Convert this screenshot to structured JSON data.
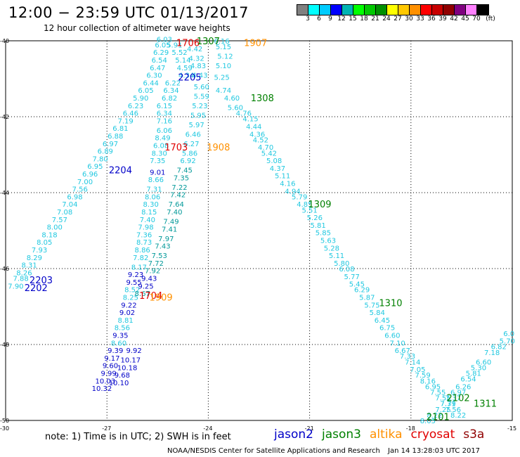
{
  "title": "12:00 − 23:59 UTC 01/13/2017",
  "subtitle": "12 hour collection of altimeter wave heights",
  "colorbar": {
    "unit": "(ft)",
    "ticks": [
      "3",
      "6",
      "9",
      "12",
      "15",
      "18",
      "21",
      "24",
      "27",
      "30",
      "33",
      "36",
      "39",
      "42",
      "45",
      "70"
    ],
    "colors": [
      "#808080",
      "#00ffff",
      "#00ccff",
      "#0000ff",
      "#00b4b4",
      "#00ff00",
      "#00c800",
      "#009000",
      "#ffff00",
      "#ffc800",
      "#ff9000",
      "#ff0000",
      "#c80000",
      "#900000",
      "#800080",
      "#ff80ff",
      "#000000"
    ]
  },
  "map": {
    "lon_range": [
      -30,
      -15
    ],
    "lat_range": [
      -50,
      -40
    ],
    "lon_ticks": [
      "-27",
      "-24",
      "-21",
      "-18",
      "-15"
    ],
    "lat_ticks": [
      "-40",
      "-42",
      "-44",
      "-46",
      "-48",
      "-50"
    ],
    "corner_label": "-30",
    "grid_color": "#000000"
  },
  "tracks": {
    "labels": [
      {
        "text": "1706",
        "lon": -24.6,
        "lat": -40.05,
        "color": "#e00000"
      },
      {
        "text": "1307",
        "lon": -24.0,
        "lat": -40.0,
        "color": "#008000"
      },
      {
        "text": "1907",
        "lon": -22.6,
        "lat": -40.05,
        "color": "#ff9000"
      },
      {
        "text": "2205",
        "lon": -24.55,
        "lat": -40.95,
        "color": "#0000c8"
      },
      {
        "text": "1308",
        "lon": -22.4,
        "lat": -41.5,
        "color": "#008000"
      },
      {
        "text": "1703",
        "lon": -24.95,
        "lat": -42.8,
        "color": "#e00000"
      },
      {
        "text": "1908",
        "lon": -23.7,
        "lat": -42.8,
        "color": "#ff9000"
      },
      {
        "text": "2204",
        "lon": -26.6,
        "lat": -43.4,
        "color": "#0000c8"
      },
      {
        "text": "1309",
        "lon": -20.7,
        "lat": -44.3,
        "color": "#008000"
      },
      {
        "text": "2203",
        "lon": -28.95,
        "lat": -46.3,
        "color": "#0000c8"
      },
      {
        "text": "2202",
        "lon": -29.1,
        "lat": -46.5,
        "color": "#0000c8"
      },
      {
        "text": "1704",
        "lon": -25.7,
        "lat": -46.7,
        "color": "#e00000"
      },
      {
        "text": "1909",
        "lon": -25.4,
        "lat": -46.75,
        "color": "#ff9000"
      },
      {
        "text": "1310",
        "lon": -18.6,
        "lat": -46.9,
        "color": "#008000"
      },
      {
        "text": "2102",
        "lon": -16.6,
        "lat": -49.4,
        "color": "#008000"
      },
      {
        "text": "1311",
        "lon": -15.8,
        "lat": -49.55,
        "color": "#008000"
      },
      {
        "text": "2101",
        "lon": -17.2,
        "lat": -49.9,
        "color": "#008000"
      }
    ],
    "descending_jason3_a": [
      {
        "lon": -23.6,
        "lat": -40.0,
        "v": "6.16"
      },
      {
        "lon": -23.55,
        "lat": -40.15,
        "v": "5.15"
      },
      {
        "lon": -23.5,
        "lat": -40.4,
        "v": "5.12"
      },
      {
        "lon": -23.55,
        "lat": -40.65,
        "v": "5.10"
      },
      {
        "lon": -23.6,
        "lat": -40.95,
        "v": "5.25"
      },
      {
        "lon": -23.55,
        "lat": -41.3,
        "v": "4.74"
      },
      {
        "lon": -23.3,
        "lat": -41.5,
        "v": "4.60"
      },
      {
        "lon": -23.2,
        "lat": -41.75,
        "v": "5.60"
      },
      {
        "lon": -22.95,
        "lat": -41.9,
        "v": "4.76"
      },
      {
        "lon": -22.75,
        "lat": -42.05,
        "v": "4.15"
      },
      {
        "lon": -22.65,
        "lat": -42.25,
        "v": "4.44"
      },
      {
        "lon": -22.55,
        "lat": -42.45,
        "v": "4.36"
      },
      {
        "lon": -22.45,
        "lat": -42.6,
        "v": "4.52"
      },
      {
        "lon": -22.3,
        "lat": -42.8,
        "v": "4.70"
      },
      {
        "lon": -22.2,
        "lat": -42.95,
        "v": "5.42"
      },
      {
        "lon": -22.05,
        "lat": -43.15,
        "v": "5.08"
      },
      {
        "lon": -21.95,
        "lat": -43.35,
        "v": "4.37"
      },
      {
        "lon": -21.8,
        "lat": -43.55,
        "v": "5.11"
      },
      {
        "lon": -21.65,
        "lat": -43.75,
        "v": "4.16"
      },
      {
        "lon": -21.5,
        "lat": -43.95,
        "v": "4.94"
      },
      {
        "lon": -21.3,
        "lat": -44.1,
        "v": "5.79"
      },
      {
        "lon": -21.15,
        "lat": -44.3,
        "v": "4.85"
      },
      {
        "lon": -21.0,
        "lat": -44.45,
        "v": "5.51"
      },
      {
        "lon": -20.85,
        "lat": -44.65,
        "v": "5.26"
      },
      {
        "lon": -20.75,
        "lat": -44.85,
        "v": "5.81"
      },
      {
        "lon": -20.6,
        "lat": -45.05,
        "v": "5.85"
      },
      {
        "lon": -20.45,
        "lat": -45.25,
        "v": "5.63"
      },
      {
        "lon": -20.35,
        "lat": -45.45,
        "v": "5.28"
      },
      {
        "lon": -20.2,
        "lat": -45.65,
        "v": "5.11"
      },
      {
        "lon": -20.05,
        "lat": -45.85,
        "v": "5.80"
      },
      {
        "lon": -19.9,
        "lat": -46.0,
        "v": "6.08"
      },
      {
        "lon": -19.75,
        "lat": -46.2,
        "v": "5.77"
      },
      {
        "lon": -19.6,
        "lat": -46.4,
        "v": "5.45"
      },
      {
        "lon": -19.45,
        "lat": -46.55,
        "v": "6.29"
      },
      {
        "lon": -19.3,
        "lat": -46.75,
        "v": "5.87"
      },
      {
        "lon": -19.15,
        "lat": -46.95,
        "v": "5.75"
      },
      {
        "lon": -19.0,
        "lat": -47.15,
        "v": "5.84"
      },
      {
        "lon": -18.85,
        "lat": -47.35,
        "v": "6.45"
      },
      {
        "lon": -18.7,
        "lat": -47.55,
        "v": "6.75"
      },
      {
        "lon": -18.55,
        "lat": -47.75,
        "v": "6.60"
      },
      {
        "lon": -18.4,
        "lat": -47.95,
        "v": "7.10"
      },
      {
        "lon": -18.25,
        "lat": -48.15,
        "v": "6.67"
      },
      {
        "lon": -18.1,
        "lat": -48.3,
        "v": "7.33"
      },
      {
        "lon": -17.95,
        "lat": -48.45,
        "v": "7.14"
      },
      {
        "lon": -17.8,
        "lat": -48.65,
        "v": "7.05"
      },
      {
        "lon": -17.65,
        "lat": -48.8,
        "v": "7.59"
      },
      {
        "lon": -17.5,
        "lat": -48.95,
        "v": "8.16"
      },
      {
        "lon": -17.35,
        "lat": -49.1,
        "v": "6.95"
      },
      {
        "lon": -17.2,
        "lat": -49.25,
        "v": "7.55"
      },
      {
        "lon": -17.05,
        "lat": -49.4,
        "v": "7.55"
      },
      {
        "lon": -16.9,
        "lat": -49.55,
        "v": "7.71"
      },
      {
        "lon": -16.75,
        "lat": -49.7,
        "v": "7.56"
      },
      {
        "lon": -16.6,
        "lat": -49.85,
        "v": "8.22"
      }
    ],
    "ascending_jason3_b": [
      {
        "lon": -15.1,
        "lat": -47.7,
        "v": "6.0"
      },
      {
        "lon": -15.15,
        "lat": -47.9,
        "v": "5.70"
      },
      {
        "lon": -15.4,
        "lat": -48.05,
        "v": "6.82"
      },
      {
        "lon": -15.6,
        "lat": -48.2,
        "v": "7.18"
      },
      {
        "lon": -15.85,
        "lat": -48.45,
        "v": "6.60"
      },
      {
        "lon": -16.0,
        "lat": -48.6,
        "v": "5.30"
      },
      {
        "lon": -16.15,
        "lat": -48.75,
        "v": "5.81"
      },
      {
        "lon": -16.3,
        "lat": -48.9,
        "v": "6.54"
      },
      {
        "lon": -16.45,
        "lat": -49.1,
        "v": "6.26"
      },
      {
        "lon": -16.6,
        "lat": -49.25,
        "v": "6.97"
      },
      {
        "lon": -16.75,
        "lat": -49.4,
        "v": "7.37"
      },
      {
        "lon": -16.9,
        "lat": -49.55,
        "v": "7.39"
      },
      {
        "lon": -17.05,
        "lat": -49.7,
        "v": "7.25"
      },
      {
        "lon": -17.3,
        "lat": -49.85,
        "v": "8.22"
      },
      {
        "lon": -17.5,
        "lat": -50.0,
        "v": "8.05"
      }
    ],
    "jason2_west": [
      {
        "lon": -29.7,
        "lat": -46.45,
        "v": "7.90"
      },
      {
        "lon": -29.55,
        "lat": -46.25,
        "v": "7.88"
      },
      {
        "lon": -29.45,
        "lat": -46.1,
        "v": "8.26"
      },
      {
        "lon": -29.3,
        "lat": -45.9,
        "v": "8.31"
      },
      {
        "lon": -29.15,
        "lat": -45.7,
        "v": "8.29"
      },
      {
        "lon": -29.0,
        "lat": -45.5,
        "v": "7.93"
      },
      {
        "lon": -28.85,
        "lat": -45.3,
        "v": "8.05"
      },
      {
        "lon": -28.7,
        "lat": -45.1,
        "v": "8.18"
      },
      {
        "lon": -28.55,
        "lat": -44.9,
        "v": "8.00"
      },
      {
        "lon": -28.4,
        "lat": -44.7,
        "v": "7.57"
      },
      {
        "lon": -28.25,
        "lat": -44.5,
        "v": "7.08"
      },
      {
        "lon": -28.1,
        "lat": -44.3,
        "v": "7.04"
      },
      {
        "lon": -27.95,
        "lat": -44.1,
        "v": "6.98"
      },
      {
        "lon": -27.8,
        "lat": -43.9,
        "v": "7.56"
      },
      {
        "lon": -27.65,
        "lat": -43.7,
        "v": "7.00"
      },
      {
        "lon": -27.5,
        "lat": -43.5,
        "v": "6.96"
      },
      {
        "lon": -27.35,
        "lat": -43.3,
        "v": "6.95"
      },
      {
        "lon": -27.2,
        "lat": -43.1,
        "v": "7.80"
      },
      {
        "lon": -27.05,
        "lat": -42.9,
        "v": "6.89"
      },
      {
        "lon": -26.9,
        "lat": -42.7,
        "v": "6.97"
      },
      {
        "lon": -26.75,
        "lat": -42.5,
        "v": "6.88"
      },
      {
        "lon": -26.6,
        "lat": -42.3,
        "v": "6.81"
      },
      {
        "lon": -26.45,
        "lat": -42.1,
        "v": "7.19"
      },
      {
        "lon": -26.3,
        "lat": -41.9,
        "v": "6.46"
      },
      {
        "lon": -26.15,
        "lat": -41.7,
        "v": "6.23"
      },
      {
        "lon": -26.0,
        "lat": -41.5,
        "v": "5.90"
      },
      {
        "lon": -25.85,
        "lat": -41.3,
        "v": "6.05"
      },
      {
        "lon": -25.7,
        "lat": -41.1,
        "v": "6.44"
      },
      {
        "lon": -25.6,
        "lat": -40.9,
        "v": "6.30"
      },
      {
        "lon": -25.5,
        "lat": -40.7,
        "v": "6.47"
      },
      {
        "lon": -25.45,
        "lat": -40.5,
        "v": "6.54"
      },
      {
        "lon": -25.4,
        "lat": -40.3,
        "v": "6.29"
      },
      {
        "lon": -25.35,
        "lat": -40.1,
        "v": "6.05"
      },
      {
        "lon": -25.3,
        "lat": -39.95,
        "v": "6.03"
      }
    ],
    "jason2_center": [
      {
        "lon": -25.0,
        "lat": -40.1,
        "v": "5.91"
      },
      {
        "lon": -24.85,
        "lat": -40.3,
        "v": "5.52"
      },
      {
        "lon": -24.75,
        "lat": -40.5,
        "v": "5.14"
      },
      {
        "lon": -24.7,
        "lat": -40.7,
        "v": "4.59"
      },
      {
        "lon": -24.65,
        "lat": -40.9,
        "v": "4.34"
      },
      {
        "lon": -25.05,
        "lat": -41.1,
        "v": "6.22"
      },
      {
        "lon": -25.1,
        "lat": -41.3,
        "v": "6.34"
      },
      {
        "lon": -25.15,
        "lat": -41.5,
        "v": "6.82"
      },
      {
        "lon": -25.3,
        "lat": -41.7,
        "v": "6.15"
      },
      {
        "lon": -25.3,
        "lat": -41.9,
        "v": "6.34"
      },
      {
        "lon": -25.3,
        "lat": -42.1,
        "v": "7.16"
      },
      {
        "lon": -25.3,
        "lat": -42.35,
        "v": "6.06"
      },
      {
        "lon": -25.35,
        "lat": -42.55,
        "v": "8.49"
      },
      {
        "lon": -25.4,
        "lat": -42.75,
        "v": "6.08"
      },
      {
        "lon": -25.45,
        "lat": -42.95,
        "v": "8.30"
      },
      {
        "lon": -25.5,
        "lat": -43.15,
        "v": "7.35"
      },
      {
        "lon": -25.5,
        "lat": -43.45,
        "v": "9.01"
      },
      {
        "lon": -25.55,
        "lat": -43.65,
        "v": "8.66"
      },
      {
        "lon": -25.6,
        "lat": -43.9,
        "v": "7.31"
      },
      {
        "lon": -25.65,
        "lat": -44.1,
        "v": "8.06"
      },
      {
        "lon": -25.7,
        "lat": -44.3,
        "v": "8.30"
      },
      {
        "lon": -25.75,
        "lat": -44.5,
        "v": "8.15"
      },
      {
        "lon": -25.8,
        "lat": -44.7,
        "v": "7.40"
      },
      {
        "lon": -25.85,
        "lat": -44.9,
        "v": "7.98"
      },
      {
        "lon": -25.9,
        "lat": -45.1,
        "v": "7.36"
      },
      {
        "lon": -25.9,
        "lat": -45.3,
        "v": "8.73"
      },
      {
        "lon": -25.95,
        "lat": -45.5,
        "v": "8.86"
      },
      {
        "lon": -26.0,
        "lat": -45.7,
        "v": "7.82"
      },
      {
        "lon": -26.05,
        "lat": -45.95,
        "v": "8.17"
      },
      {
        "lon": -26.15,
        "lat": -46.15,
        "v": "9.23"
      },
      {
        "lon": -26.2,
        "lat": -46.35,
        "v": "9.55"
      },
      {
        "lon": -26.25,
        "lat": -46.55,
        "v": "8.52"
      },
      {
        "lon": -26.3,
        "lat": -46.75,
        "v": "8.25"
      },
      {
        "lon": -26.35,
        "lat": -46.95,
        "v": "9.22"
      },
      {
        "lon": -26.4,
        "lat": -47.15,
        "v": "9.02"
      },
      {
        "lon": -26.45,
        "lat": -47.35,
        "v": "8.81"
      },
      {
        "lon": -26.55,
        "lat": -47.55,
        "v": "8.56"
      },
      {
        "lon": -26.6,
        "lat": -47.75,
        "v": "9.35"
      },
      {
        "lon": -26.65,
        "lat": -47.95,
        "v": "8.60"
      },
      {
        "lon": -26.75,
        "lat": -48.15,
        "v": "9.39"
      },
      {
        "lon": -26.85,
        "lat": -48.35,
        "v": "9.17"
      },
      {
        "lon": -26.9,
        "lat": -48.55,
        "v": "9.60"
      },
      {
        "lon": -26.95,
        "lat": -48.75,
        "v": "9.99"
      },
      {
        "lon": -27.05,
        "lat": -48.95,
        "v": "10.03"
      },
      {
        "lon": -27.15,
        "lat": -49.15,
        "v": "10.32"
      }
    ],
    "jason3_center": [
      {
        "lon": -24.4,
        "lat": -40.2,
        "v": "4.42"
      },
      {
        "lon": -24.35,
        "lat": -40.45,
        "v": "4.32"
      },
      {
        "lon": -24.3,
        "lat": -40.65,
        "v": "4.83"
      },
      {
        "lon": -24.25,
        "lat": -40.9,
        "v": "4.43"
      },
      {
        "lon": -24.2,
        "lat": -41.2,
        "v": "5.60"
      },
      {
        "lon": -24.2,
        "lat": -41.45,
        "v": "5.59"
      },
      {
        "lon": -24.25,
        "lat": -41.7,
        "v": "5.23"
      },
      {
        "lon": -24.3,
        "lat": -41.95,
        "v": "5.95"
      },
      {
        "lon": -24.35,
        "lat": -42.2,
        "v": "5.97"
      },
      {
        "lon": -24.45,
        "lat": -42.45,
        "v": "6.46"
      },
      {
        "lon": -24.5,
        "lat": -42.7,
        "v": "6.27"
      },
      {
        "lon": -24.55,
        "lat": -42.95,
        "v": "5.86"
      },
      {
        "lon": -24.6,
        "lat": -43.15,
        "v": "6.92"
      },
      {
        "lon": -24.7,
        "lat": -43.4,
        "v": "7.45"
      },
      {
        "lon": -24.8,
        "lat": -43.6,
        "v": "7.35"
      },
      {
        "lon": -24.85,
        "lat": -43.85,
        "v": "7.22"
      },
      {
        "lon": -24.9,
        "lat": -44.05,
        "v": "7.42"
      },
      {
        "lon": -24.95,
        "lat": -44.3,
        "v": "7.64"
      },
      {
        "lon": -25.0,
        "lat": -44.5,
        "v": "7.40"
      },
      {
        "lon": -25.1,
        "lat": -44.75,
        "v": "7.49"
      },
      {
        "lon": -25.15,
        "lat": -44.95,
        "v": "7.41"
      },
      {
        "lon": -25.25,
        "lat": -45.2,
        "v": "7.97"
      },
      {
        "lon": -25.35,
        "lat": -45.4,
        "v": "7.43"
      },
      {
        "lon": -25.45,
        "lat": -45.65,
        "v": "7.53"
      },
      {
        "lon": -25.55,
        "lat": -45.85,
        "v": "7.72"
      },
      {
        "lon": -25.65,
        "lat": -46.05,
        "v": "7.92"
      },
      {
        "lon": -25.75,
        "lat": -46.25,
        "v": "9.43"
      },
      {
        "lon": -25.85,
        "lat": -46.45,
        "v": "9.25"
      },
      {
        "lon": -25.95,
        "lat": -46.65,
        "v": "8.67"
      },
      {
        "lon": -26.2,
        "lat": -48.15,
        "v": "9.92"
      },
      {
        "lon": -26.3,
        "lat": -48.4,
        "v": "10.17"
      },
      {
        "lon": -26.4,
        "lat": -48.6,
        "v": "10.18"
      },
      {
        "lon": -26.55,
        "lat": -48.8,
        "v": "9.68"
      },
      {
        "lon": -26.65,
        "lat": -49.0,
        "v": "10.10"
      }
    ]
  },
  "note": "note:  1) Time is in UTC;  2) SWH is in feet",
  "legend": [
    {
      "name": "jason2",
      "color": "#0000c8"
    },
    {
      "name": "jason3",
      "color": "#008000"
    },
    {
      "name": "altika",
      "color": "#ff9000"
    },
    {
      "name": "cryosat",
      "color": "#e00000"
    },
    {
      "name": "s3a",
      "color": "#900000"
    }
  ],
  "credit": "NOAA/NESDIS Center for Satellite Applications and Research",
  "timestamp": "Jan 14 13:28:03 UTC 2017"
}
